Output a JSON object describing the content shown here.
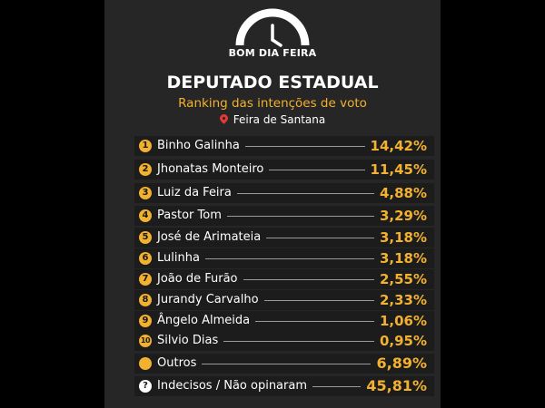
{
  "brand": {
    "logo_text": "BOM DIA FEIRA"
  },
  "header": {
    "title": "DEPUTADO ESTADUAL",
    "subtitle": "Ranking das intenções de voto",
    "location": "Feira de Santana"
  },
  "colors": {
    "accent": "#f2b12e",
    "background": "#262626",
    "row": "#1c1c1c",
    "pin": "#e53935"
  },
  "chart_data": {
    "type": "table",
    "title": "DEPUTADO ESTADUAL",
    "subtitle": "Ranking das intenções de voto",
    "rows": [
      {
        "rank": "1",
        "name": "Binho Galinha",
        "value": "14,42%"
      },
      {
        "rank": "2",
        "name": "Jhonatas Monteiro",
        "value": "11,45%"
      },
      {
        "rank": "3",
        "name": "Luiz da Feira",
        "value": "4,88%"
      },
      {
        "rank": "4",
        "name": "Pastor Tom",
        "value": "3,29%"
      },
      {
        "rank": "5",
        "name": "José de Arimateia",
        "value": "3,18%"
      },
      {
        "rank": "6",
        "name": "Lulinha",
        "value": "3,18%"
      },
      {
        "rank": "7",
        "name": "João de Furão",
        "value": "2,55%"
      },
      {
        "rank": "8",
        "name": "Jurandy Carvalho",
        "value": "2,33%"
      },
      {
        "rank": "9",
        "name": "Ângelo Almeida",
        "value": "1,06%"
      },
      {
        "rank": "10",
        "name": "Silvio Dias",
        "value": "0,95%"
      },
      {
        "rank": "",
        "name": "Outros",
        "value": "6,89%"
      },
      {
        "rank": "?",
        "name": "Indecisos / Não opinaram",
        "value": "45,81%"
      }
    ]
  }
}
